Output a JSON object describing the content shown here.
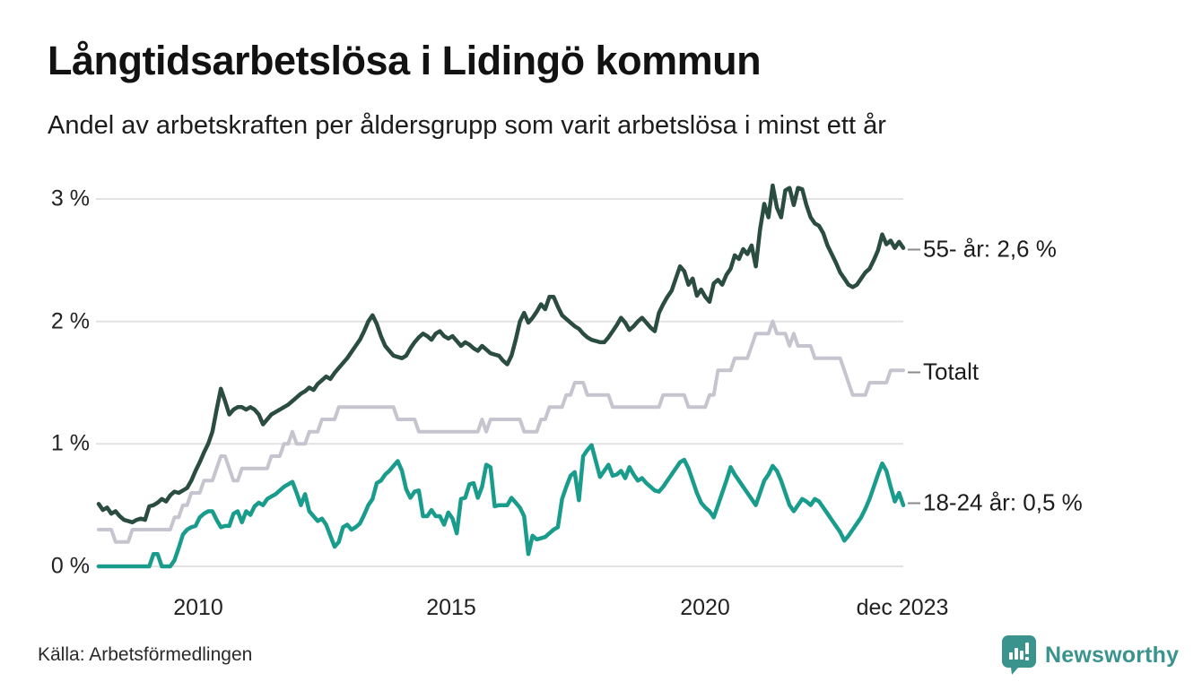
{
  "title": "Långtidsarbetslösa i Lidingö kommun",
  "subtitle": "Andel av arbetskraften per åldersgrupp som varit arbetslösa i minst ett år",
  "source": "Källa: Arbetsförmedlingen",
  "branding": {
    "name": "Newsworthy",
    "logo_icon": "speech-bubble-bar-chart-icon",
    "color": "#3a938c"
  },
  "colors": {
    "series_55": "#2b4c41",
    "series_total": "#c6c4cf",
    "series_youth": "#1a9c8c",
    "gridline": "#e2e2e2",
    "text": "#1a1a1a",
    "annotation_dash": "#8a8a8a"
  },
  "chart_data": {
    "type": "line",
    "title": "Långtidsarbetslösa i Lidingö kommun",
    "subtitle": "Andel av arbetskraften per åldersgrupp som varit arbetslösa i minst ett år",
    "unit": "% av arbetskraften",
    "frequency": "monthly",
    "x_start": "2008-01",
    "x_end": "2023-12",
    "ylim": [
      0,
      3.2
    ],
    "grid": "horizontal",
    "legend_position": "end-of-line-labels",
    "y_ticks_display": [
      "3 %",
      "2 %",
      "1 %",
      "0 %"
    ],
    "y_tick_values": [
      3,
      2,
      1,
      0
    ],
    "x_ticks": [
      "2010",
      "2015",
      "2020",
      "dec 2023"
    ],
    "series": [
      {
        "name": "Totalt",
        "end_label": "Totalt",
        "end_value": 1.6,
        "color": "#c6c4cf",
        "values": [
          0.3,
          0.3,
          0.3,
          0.3,
          0.2,
          0.2,
          0.2,
          0.2,
          0.3,
          0.3,
          0.3,
          0.3,
          0.3,
          0.3,
          0.3,
          0.3,
          0.3,
          0.3,
          0.4,
          0.4,
          0.5,
          0.5,
          0.6,
          0.6,
          0.6,
          0.7,
          0.7,
          0.7,
          0.8,
          0.9,
          0.9,
          0.8,
          0.7,
          0.7,
          0.8,
          0.8,
          0.8,
          0.8,
          0.8,
          0.8,
          0.8,
          0.9,
          0.9,
          0.9,
          1.0,
          1.0,
          1.1,
          1.0,
          1.0,
          1.0,
          1.1,
          1.1,
          1.1,
          1.2,
          1.2,
          1.2,
          1.2,
          1.3,
          1.3,
          1.3,
          1.3,
          1.3,
          1.3,
          1.3,
          1.3,
          1.3,
          1.3,
          1.3,
          1.3,
          1.3,
          1.3,
          1.2,
          1.2,
          1.2,
          1.2,
          1.2,
          1.1,
          1.1,
          1.1,
          1.1,
          1.1,
          1.1,
          1.1,
          1.1,
          1.1,
          1.1,
          1.1,
          1.1,
          1.1,
          1.1,
          1.1,
          1.2,
          1.1,
          1.2,
          1.2,
          1.2,
          1.2,
          1.2,
          1.2,
          1.2,
          1.2,
          1.1,
          1.1,
          1.1,
          1.1,
          1.2,
          1.2,
          1.3,
          1.3,
          1.3,
          1.3,
          1.4,
          1.4,
          1.5,
          1.5,
          1.5,
          1.4,
          1.4,
          1.4,
          1.4,
          1.4,
          1.4,
          1.3,
          1.3,
          1.3,
          1.3,
          1.3,
          1.3,
          1.3,
          1.3,
          1.3,
          1.3,
          1.3,
          1.3,
          1.4,
          1.4,
          1.4,
          1.4,
          1.4,
          1.4,
          1.3,
          1.3,
          1.3,
          1.3,
          1.3,
          1.4,
          1.4,
          1.6,
          1.6,
          1.6,
          1.6,
          1.7,
          1.7,
          1.7,
          1.7,
          1.8,
          1.9,
          1.9,
          1.9,
          1.9,
          2.0,
          1.9,
          1.9,
          1.9,
          1.8,
          1.9,
          1.8,
          1.8,
          1.8,
          1.8,
          1.7,
          1.7,
          1.7,
          1.7,
          1.7,
          1.7,
          1.7,
          1.6,
          1.5,
          1.4,
          1.4,
          1.4,
          1.4,
          1.5,
          1.5,
          1.5,
          1.5,
          1.5,
          1.6,
          1.6,
          1.6,
          1.6
        ]
      },
      {
        "name": "55- år",
        "end_label": "55- år: 2,6 %",
        "end_value": 2.6,
        "color": "#2b4c41",
        "values": [
          0.51,
          0.46,
          0.48,
          0.43,
          0.45,
          0.41,
          0.38,
          0.37,
          0.36,
          0.38,
          0.39,
          0.38,
          0.49,
          0.5,
          0.52,
          0.55,
          0.53,
          0.58,
          0.61,
          0.6,
          0.62,
          0.64,
          0.7,
          0.78,
          0.85,
          0.93,
          1.0,
          1.1,
          1.28,
          1.45,
          1.35,
          1.24,
          1.28,
          1.3,
          1.3,
          1.28,
          1.3,
          1.28,
          1.24,
          1.16,
          1.2,
          1.24,
          1.26,
          1.28,
          1.3,
          1.32,
          1.35,
          1.38,
          1.41,
          1.43,
          1.46,
          1.44,
          1.49,
          1.52,
          1.55,
          1.53,
          1.58,
          1.62,
          1.66,
          1.7,
          1.75,
          1.8,
          1.85,
          1.92,
          2.0,
          2.05,
          1.98,
          1.88,
          1.8,
          1.76,
          1.72,
          1.71,
          1.7,
          1.72,
          1.78,
          1.83,
          1.87,
          1.9,
          1.88,
          1.85,
          1.9,
          1.92,
          1.88,
          1.86,
          1.88,
          1.84,
          1.8,
          1.83,
          1.81,
          1.78,
          1.76,
          1.8,
          1.77,
          1.74,
          1.73,
          1.72,
          1.68,
          1.65,
          1.72,
          1.85,
          2.0,
          2.07,
          1.99,
          2.03,
          2.08,
          2.14,
          2.1,
          2.2,
          2.2,
          2.12,
          2.05,
          2.02,
          1.99,
          1.96,
          1.94,
          1.9,
          1.87,
          1.85,
          1.84,
          1.83,
          1.83,
          1.87,
          1.92,
          1.97,
          2.03,
          1.99,
          1.93,
          1.96,
          2.0,
          2.03,
          1.99,
          1.95,
          1.92,
          2.07,
          2.14,
          2.2,
          2.25,
          2.35,
          2.45,
          2.41,
          2.3,
          2.35,
          2.21,
          2.26,
          2.2,
          2.16,
          2.31,
          2.34,
          2.3,
          2.38,
          2.43,
          2.54,
          2.51,
          2.59,
          2.55,
          2.62,
          2.45,
          2.75,
          2.96,
          2.85,
          3.11,
          2.93,
          2.85,
          3.07,
          3.09,
          2.95,
          3.09,
          3.08,
          2.95,
          2.85,
          2.8,
          2.78,
          2.72,
          2.62,
          2.55,
          2.48,
          2.4,
          2.35,
          2.3,
          2.28,
          2.3,
          2.35,
          2.4,
          2.43,
          2.5,
          2.58,
          2.71,
          2.63,
          2.66,
          2.6,
          2.65,
          2.6
        ]
      },
      {
        "name": "18-24 år",
        "end_label": "18-24 år: 0,5 %",
        "end_value": 0.5,
        "color": "#1a9c8c",
        "values": [
          0,
          0,
          0,
          0,
          0,
          0,
          0,
          0,
          0,
          0,
          0,
          0,
          0,
          0.1,
          0.1,
          0,
          0,
          0,
          0.05,
          0.15,
          0.26,
          0.3,
          0.32,
          0.33,
          0.4,
          0.43,
          0.45,
          0.45,
          0.38,
          0.32,
          0.33,
          0.33,
          0.43,
          0.45,
          0.36,
          0.45,
          0.42,
          0.49,
          0.52,
          0.5,
          0.55,
          0.57,
          0.59,
          0.62,
          0.65,
          0.67,
          0.69,
          0.6,
          0.5,
          0.59,
          0.45,
          0.41,
          0.37,
          0.39,
          0.34,
          0.25,
          0.16,
          0.2,
          0.32,
          0.34,
          0.3,
          0.32,
          0.35,
          0.42,
          0.5,
          0.55,
          0.68,
          0.7,
          0.75,
          0.78,
          0.82,
          0.86,
          0.78,
          0.63,
          0.56,
          0.61,
          0.62,
          0.41,
          0.41,
          0.46,
          0.41,
          0.41,
          0.34,
          0.44,
          0.39,
          0.27,
          0.55,
          0.56,
          0.67,
          0.68,
          0.56,
          0.65,
          0.83,
          0.81,
          0.49,
          0.5,
          0.5,
          0.5,
          0.56,
          0.52,
          0.48,
          0.41,
          0.1,
          0.25,
          0.22,
          0.23,
          0.24,
          0.27,
          0.3,
          0.32,
          0.55,
          0.65,
          0.74,
          0.77,
          0.54,
          0.9,
          0.95,
          0.99,
          0.86,
          0.73,
          0.78,
          0.83,
          0.74,
          0.75,
          0.78,
          0.72,
          0.81,
          0.75,
          0.7,
          0.72,
          0.68,
          0.65,
          0.62,
          0.61,
          0.65,
          0.7,
          0.75,
          0.8,
          0.85,
          0.87,
          0.8,
          0.7,
          0.6,
          0.52,
          0.48,
          0.45,
          0.4,
          0.5,
          0.6,
          0.7,
          0.81,
          0.75,
          0.7,
          0.65,
          0.6,
          0.55,
          0.5,
          0.6,
          0.7,
          0.75,
          0.82,
          0.78,
          0.7,
          0.6,
          0.5,
          0.45,
          0.5,
          0.55,
          0.53,
          0.5,
          0.55,
          0.53,
          0.48,
          0.43,
          0.38,
          0.33,
          0.28,
          0.21,
          0.25,
          0.3,
          0.35,
          0.4,
          0.47,
          0.55,
          0.65,
          0.75,
          0.84,
          0.78,
          0.65,
          0.53,
          0.6,
          0.5
        ]
      }
    ]
  }
}
